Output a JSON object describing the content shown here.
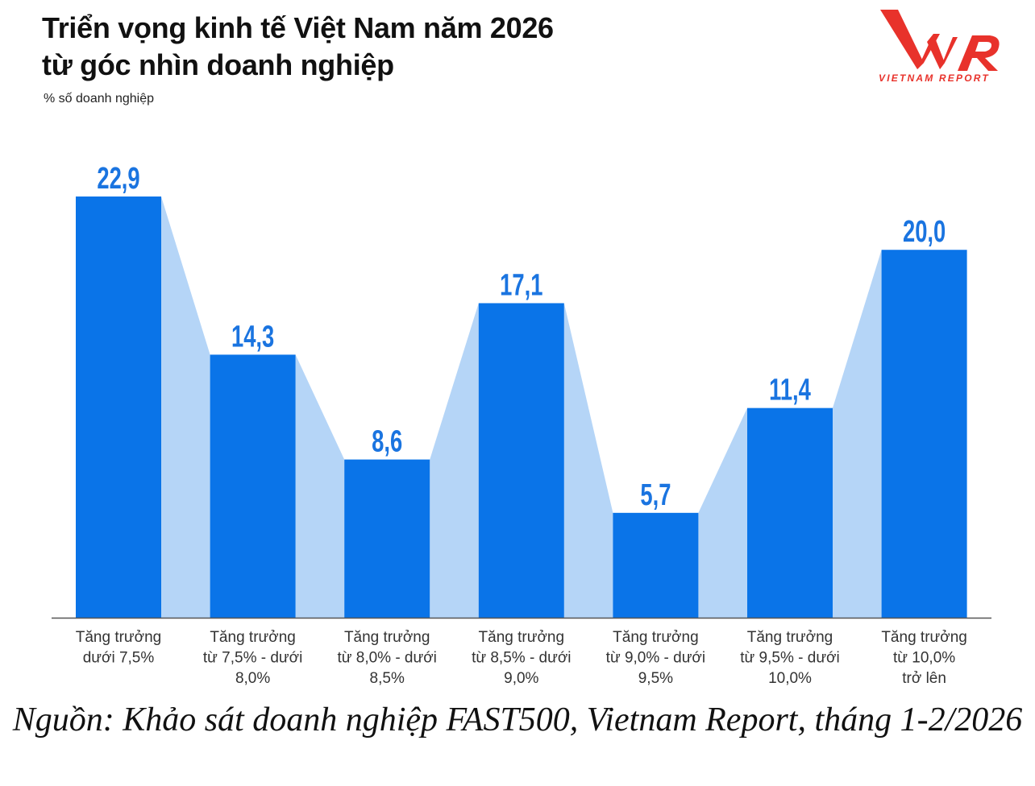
{
  "title_lines": [
    "Triển vọng kinh tế Việt Nam năm 2026",
    "từ góc nhìn doanh nghiệp"
  ],
  "subtitle": "% số doanh nghiệp",
  "logo": {
    "mark": "VNR",
    "text": "VIETNAM REPORT",
    "color": "#e8322b"
  },
  "source": "Nguồn: Khảo sát doanh nghiệp FAST500, Vietnam Report, tháng 1-2/2026",
  "chart_data": {
    "type": "bar",
    "title": "Triển vọng kinh tế Việt Nam năm 2026 từ góc nhìn doanh nghiệp",
    "ylabel": "% số doanh nghiệp",
    "categories": [
      [
        "Tăng trưởng",
        "dưới 7,5%"
      ],
      [
        "Tăng trưởng",
        "từ 7,5% - dưới",
        "8,0%"
      ],
      [
        "Tăng trưởng",
        "từ 8,0% - dưới",
        "8,5%"
      ],
      [
        "Tăng trưởng",
        "từ 8,5% - dưới",
        "9,0%"
      ],
      [
        "Tăng trưởng",
        "từ 9,0% - dưới",
        "9,5%"
      ],
      [
        "Tăng trưởng",
        "từ 9,5% - dưới",
        "10,0%"
      ],
      [
        "Tăng trưởng",
        "từ 10,0%",
        "trở lên"
      ]
    ],
    "values": [
      22.9,
      14.3,
      8.6,
      17.1,
      5.7,
      11.4,
      20.0
    ],
    "value_labels": [
      "22,9",
      "14,3",
      "8,6",
      "17,1",
      "5,7",
      "11,4",
      "20,0"
    ],
    "ylim": [
      0,
      22.9
    ],
    "grid": false,
    "bar_color": "#0a74e8",
    "connector_color": "#b5d5f7",
    "label_color": "#1a74e0"
  }
}
